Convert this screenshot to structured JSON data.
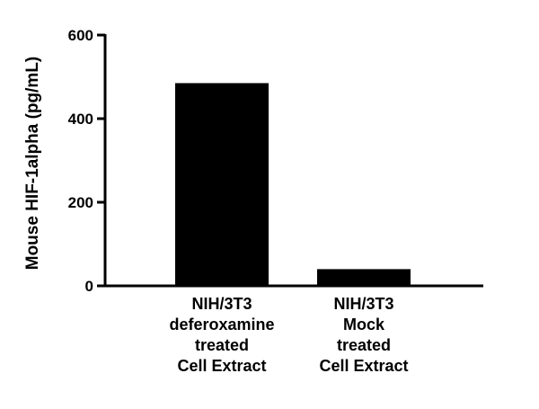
{
  "chart_data": {
    "type": "bar",
    "title": "",
    "xlabel": "",
    "ylabel": "Mouse HIF-1alpha (pg/mL)",
    "ylim": [
      0,
      600
    ],
    "yticks": [
      0,
      200,
      400,
      600
    ],
    "grid": false,
    "legend": "none",
    "categories": [
      [
        "NIH/3T3",
        "deferoxamine",
        "treated",
        "Cell Extract"
      ],
      [
        "NIH/3T3",
        "Mock",
        "treated",
        "Cell Extract"
      ]
    ],
    "values": [
      485,
      40
    ],
    "colors": {
      "bar": "#000000",
      "axis": "#000000",
      "background": "#ffffff"
    }
  }
}
